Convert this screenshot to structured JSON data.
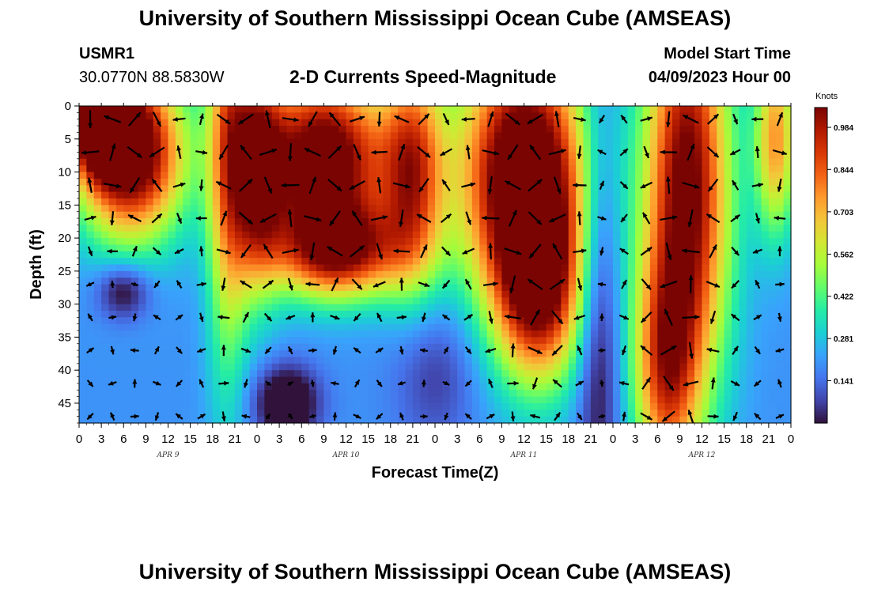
{
  "header": {
    "title": "University of Southern Mississippi Ocean Cube (AMSEAS)",
    "station_id": "USMR1",
    "coordinates": "30.0770N  88.5830W",
    "chart_title": "2-D Currents Speed-Magnitude",
    "model_start_label": "Model Start Time",
    "model_start_value": "04/09/2023 Hour 00"
  },
  "footer": {
    "title": "University of Southern Mississippi Ocean Cube (AMSEAS)"
  },
  "colors": {
    "scale": [
      "#30123b",
      "#4145ab",
      "#4675ed",
      "#39a2fc",
      "#1bcfd4",
      "#24eca6",
      "#61fc6c",
      "#a4fc3b",
      "#d1e834",
      "#f3c63a",
      "#fe9b2d",
      "#f36315",
      "#d93806",
      "#b11901",
      "#7a0402"
    ]
  },
  "chart_data": {
    "type": "heatmap",
    "title": "2-D Currents Speed-Magnitude",
    "xlabel": "Forecast Time(Z)",
    "ylabel": "Depth (ft)",
    "x_tick_labels": [
      "0",
      "3",
      "6",
      "9",
      "12",
      "15",
      "18",
      "21",
      "0",
      "3",
      "6",
      "9",
      "12",
      "15",
      "18",
      "21",
      "0",
      "3",
      "6",
      "9",
      "12",
      "15",
      "18",
      "21",
      "0",
      "3",
      "6",
      "9",
      "12",
      "15",
      "18",
      "21",
      "0"
    ],
    "day_labels": [
      "APR 9",
      "APR 10",
      "APR 11",
      "APR 12"
    ],
    "xlim_hours": [
      0,
      96
    ],
    "y_ticks": [
      0,
      5,
      10,
      15,
      20,
      25,
      30,
      35,
      40,
      45
    ],
    "ylim_ft": [
      0,
      48
    ],
    "colorbar": {
      "unit": "Knots",
      "ticks": [
        "0.984",
        "0.844",
        "0.703",
        "0.562",
        "0.422",
        "0.281",
        "0.141"
      ],
      "range": [
        0,
        1.05
      ]
    },
    "features": [
      {
        "hour": 7,
        "depth": 7,
        "speed": 1.0,
        "spread_h": 5,
        "spread_d": 9
      },
      {
        "hour": 3,
        "depth": 3,
        "speed": 0.85,
        "spread_h": 3,
        "spread_d": 5
      },
      {
        "hour": 20,
        "depth": 5,
        "speed": 0.5,
        "spread_h": 2,
        "spread_d": 25
      },
      {
        "hour": 24,
        "depth": 10,
        "speed": 0.7,
        "spread_h": 2.5,
        "spread_d": 12
      },
      {
        "hour": 33,
        "depth": 8,
        "speed": 1.0,
        "spread_h": 6,
        "spread_d": 9
      },
      {
        "hour": 45,
        "depth": 10,
        "speed": 0.65,
        "spread_h": 3,
        "spread_d": 12
      },
      {
        "hour": 35,
        "depth": 22,
        "speed": 0.75,
        "spread_h": 6,
        "spread_d": 5
      },
      {
        "hour": 60,
        "depth": 10,
        "speed": 1.05,
        "spread_h": 6,
        "spread_d": 14
      },
      {
        "hour": 62,
        "depth": 28,
        "speed": 0.7,
        "spread_h": 4,
        "spread_d": 10
      },
      {
        "hour": 82,
        "depth": 12,
        "speed": 0.9,
        "spread_h": 4,
        "spread_d": 22
      },
      {
        "hour": 79,
        "depth": 40,
        "speed": 0.55,
        "spread_h": 3,
        "spread_d": 12
      },
      {
        "hour": 94,
        "depth": 5,
        "speed": 0.55,
        "spread_h": 2,
        "spread_d": 10
      },
      {
        "hour": 6,
        "depth": 28,
        "speed": -0.25,
        "spread_h": 2.5,
        "spread_d": 3
      },
      {
        "hour": 28,
        "depth": 45,
        "speed": -0.35,
        "spread_h": 3,
        "spread_d": 4
      },
      {
        "hour": 70,
        "depth": 30,
        "speed": -0.25,
        "spread_h": 2,
        "spread_d": 25
      },
      {
        "hour": 48,
        "depth": 40,
        "speed": -0.15,
        "spread_h": 4,
        "spread_d": 8
      }
    ]
  }
}
